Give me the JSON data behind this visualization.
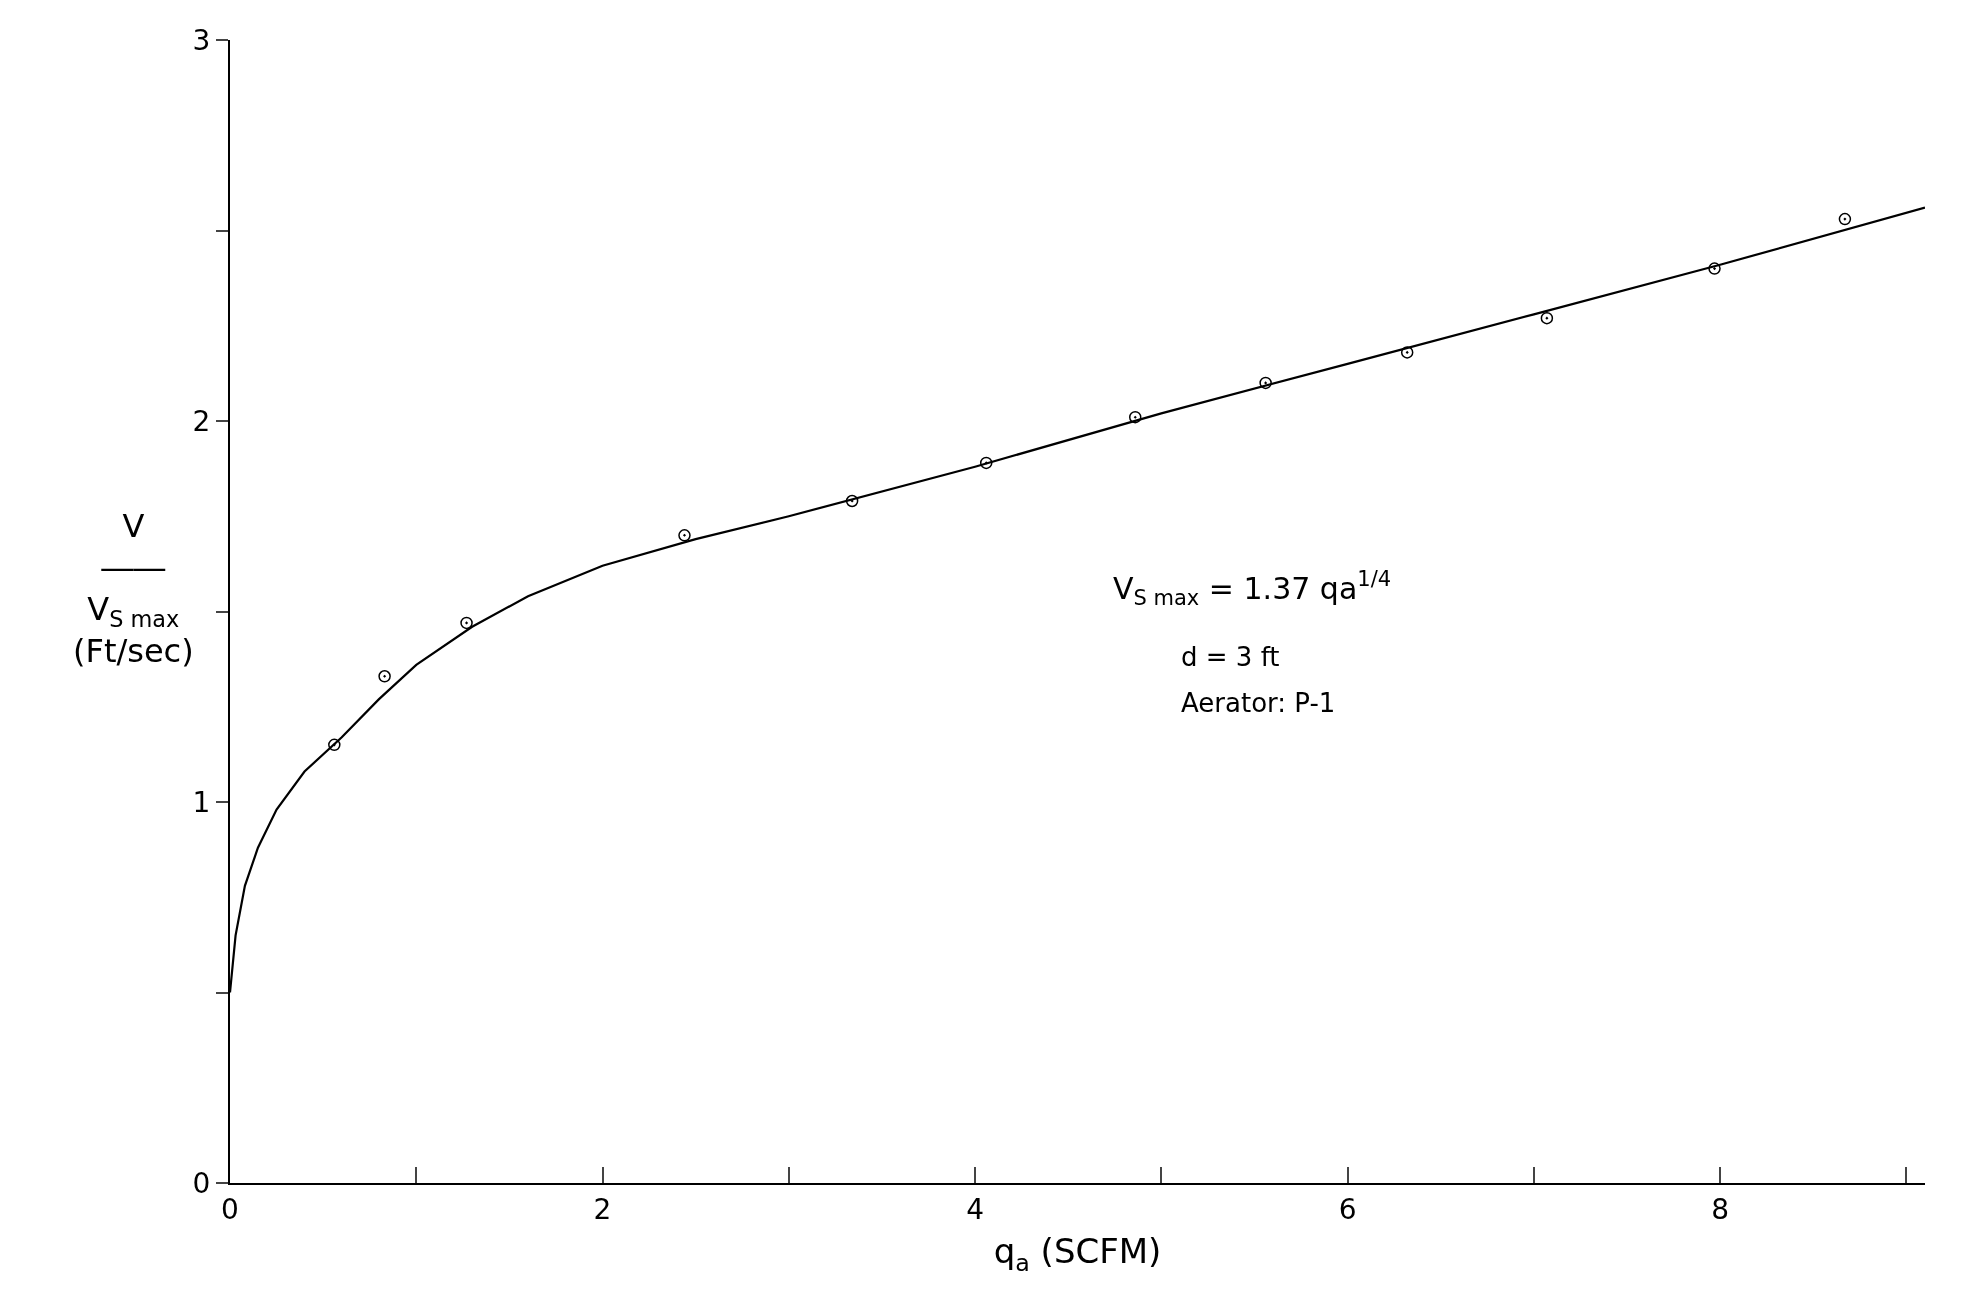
{
  "chart_data": {
    "type": "scatter",
    "xlabel": "q$_{a}$ (SCFM)",
    "ylabel": "V\n――\nV$_{S max}$\n(Ft/sec)",
    "xlim": [
      0,
      9.1
    ],
    "ylim": [
      0,
      3
    ],
    "xticks": [
      0,
      {
        "value": 1,
        "label": null
      },
      2,
      {
        "value": 3,
        "label": null
      },
      4,
      {
        "value": 5,
        "label": null
      },
      6,
      {
        "value": 7,
        "label": null
      },
      8,
      {
        "value": 9,
        "label": null
      }
    ],
    "yticks": [
      0,
      {
        "value": 0.5,
        "label": null
      },
      1,
      {
        "value": 1.5,
        "label": null
      },
      2,
      {
        "value": 2.5,
        "label": null
      },
      3
    ],
    "annotations": [
      "V$_{S max}$ = 1.37 qa$^{1/4}$",
      "d = 3 ft",
      "Aerator: P-1"
    ],
    "series": [
      {
        "marker": "circle",
        "color": "#000000",
        "x": [
          0.56,
          0.83,
          1.27,
          2.44,
          3.34,
          4.06,
          4.86,
          5.56,
          6.32,
          7.07,
          7.97,
          8.67
        ],
        "values": [
          1.15,
          1.33,
          1.47,
          1.7,
          1.79,
          1.89,
          2.01,
          2.1,
          2.18,
          2.27,
          2.4,
          2.53
        ]
      },
      {
        "type": "line",
        "marker": "none",
        "line_style": "solid",
        "color": "#000000",
        "x": [
          0,
          0.03,
          0.08,
          0.15,
          0.25,
          0.4,
          0.6,
          0.8,
          1.0,
          1.3,
          1.6,
          2.0,
          2.5,
          3,
          4,
          5,
          6,
          7,
          8,
          9.1
        ],
        "values": [
          0.5,
          0.65,
          0.78,
          0.88,
          0.98,
          1.08,
          1.17,
          1.27,
          1.36,
          1.46,
          1.54,
          1.62,
          1.69,
          1.75,
          1.88,
          2.02,
          2.15,
          2.28,
          2.41,
          2.56
        ]
      }
    ]
  }
}
